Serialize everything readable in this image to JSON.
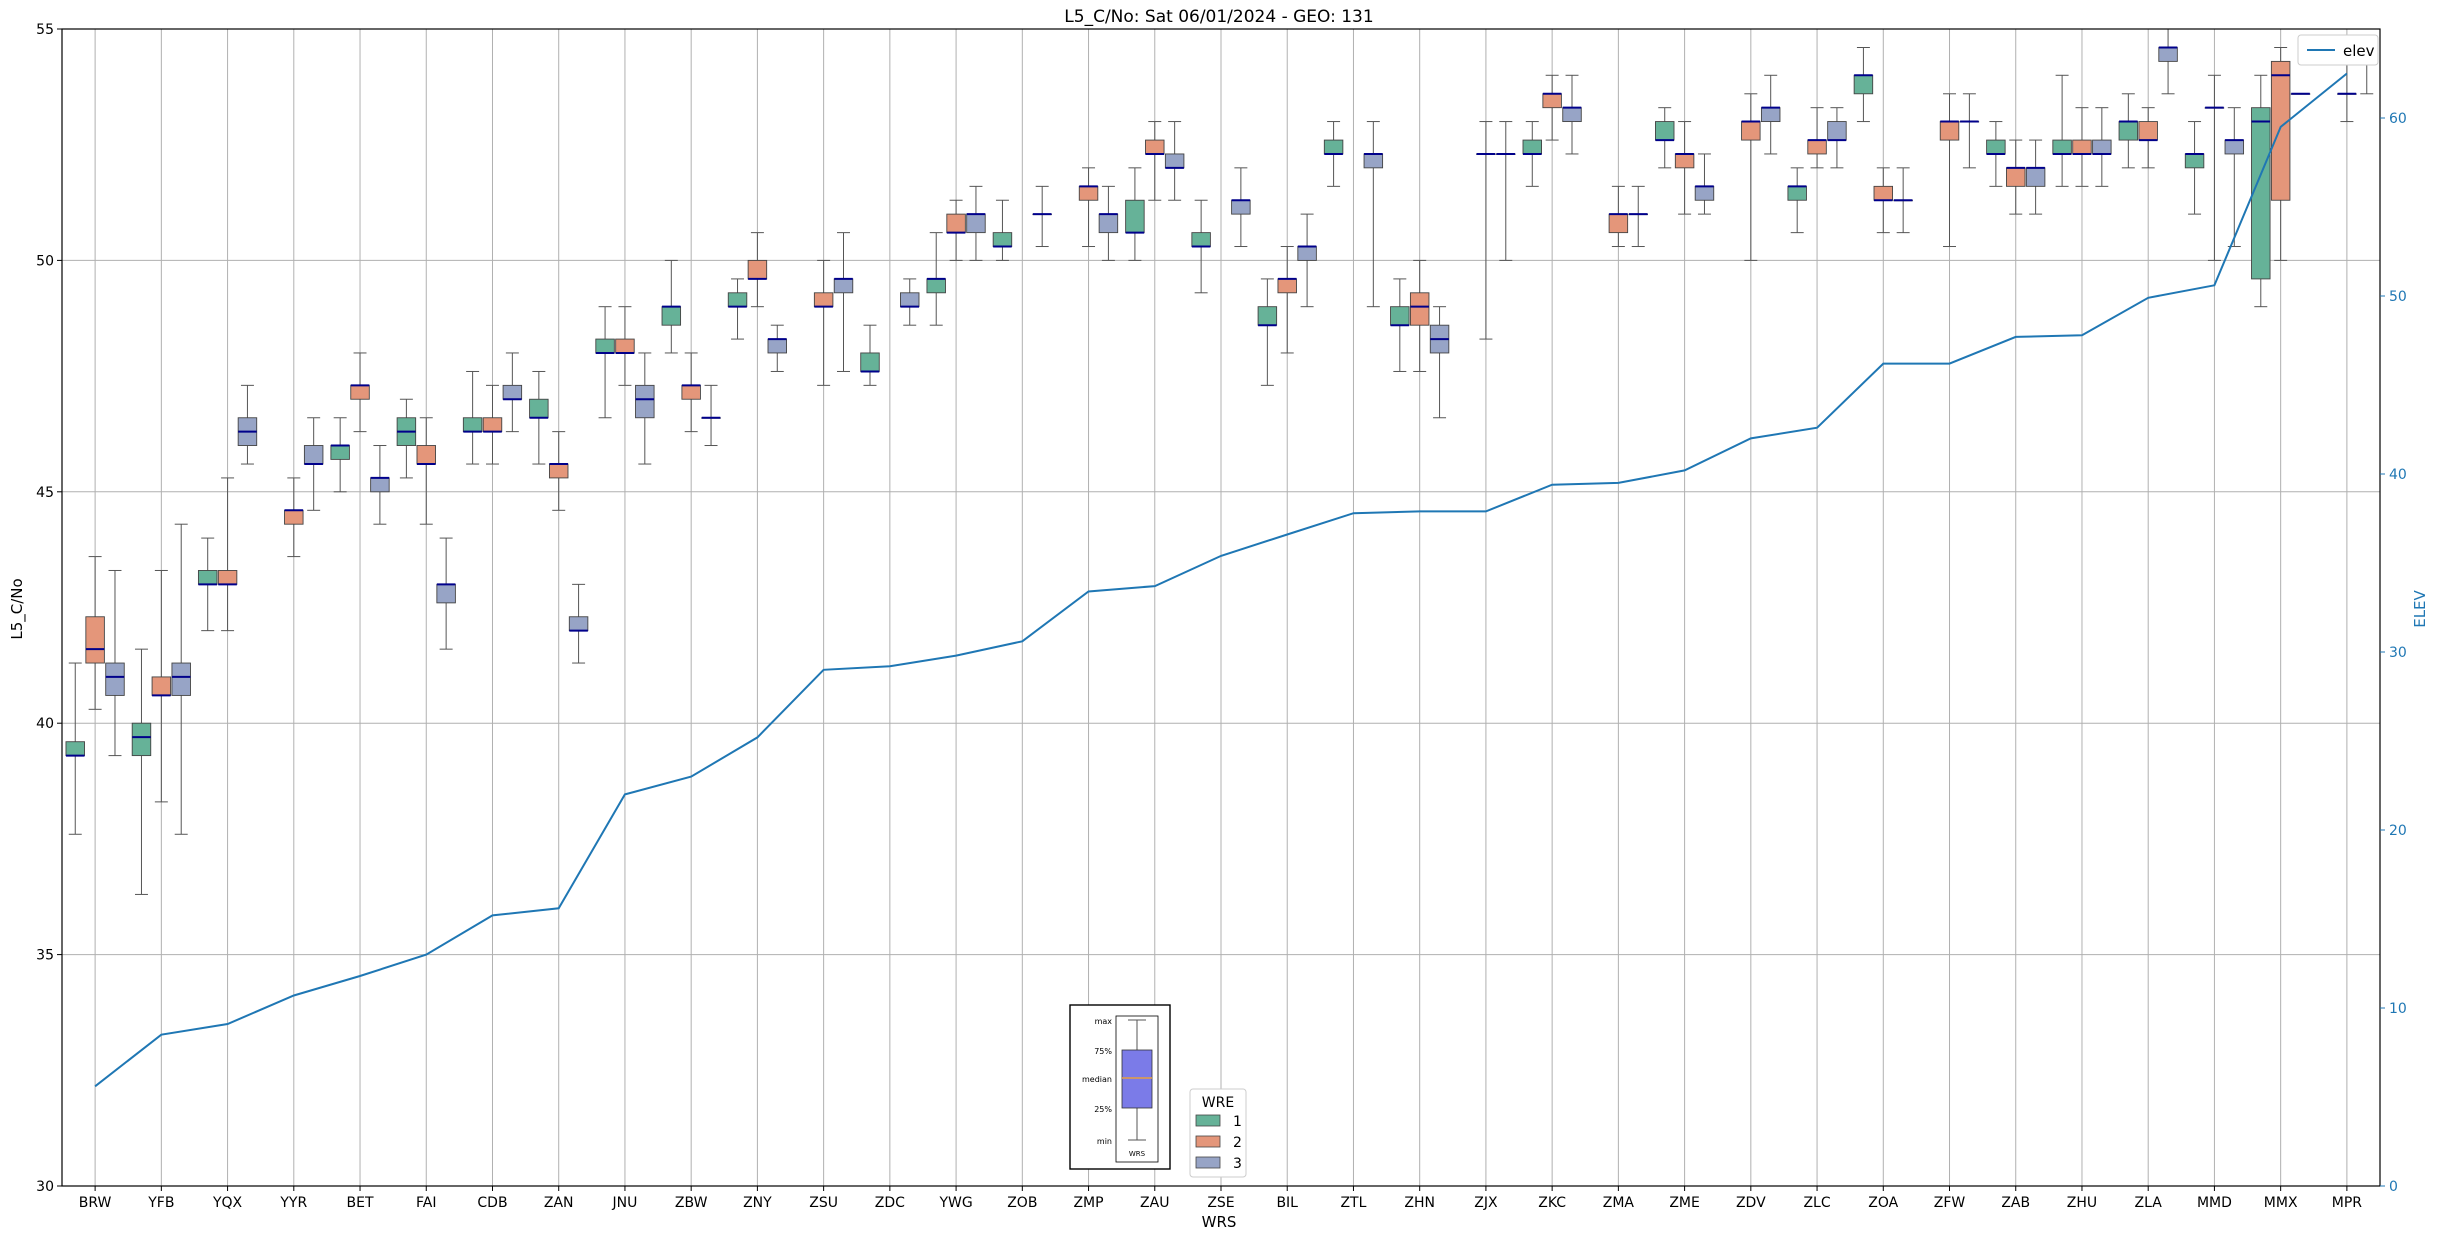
{
  "chart_data": {
    "type": "box",
    "title": "L5_C/No: Sat 06/01/2024 - GEO: 131",
    "xlabel": "WRS",
    "ylabel": "L5_C/No",
    "y2label": "ELEV",
    "ylim": [
      30,
      55
    ],
    "y2lim": [
      0,
      65
    ],
    "yticks": [
      30,
      35,
      40,
      45,
      50,
      55
    ],
    "y2ticks": [
      0,
      10,
      20,
      30,
      40,
      50,
      60
    ],
    "grid": true,
    "categories": [
      "BRW",
      "YFB",
      "YQX",
      "YYR",
      "BET",
      "FAI",
      "CDB",
      "ZAN",
      "JNU",
      "ZBW",
      "ZNY",
      "ZSU",
      "ZDC",
      "YWG",
      "ZOB",
      "ZMP",
      "ZAU",
      "ZSE",
      "BIL",
      "ZTL",
      "ZHN",
      "ZJX",
      "ZKC",
      "ZMA",
      "ZME",
      "ZDV",
      "ZLC",
      "ZOA",
      "ZFW",
      "ZAB",
      "ZHU",
      "ZLA",
      "MMD",
      "MMX",
      "MPR"
    ],
    "series": [
      {
        "name": "1",
        "color": "#66b298",
        "boxes": [
          [
            37.6,
            39.3,
            39.3,
            39.6,
            41.3
          ],
          [
            36.3,
            39.3,
            39.7,
            40.0,
            41.6
          ],
          [
            42.0,
            43.0,
            43.0,
            43.3,
            44.0
          ],
          null,
          [
            45.0,
            45.7,
            46.0,
            46.0,
            46.6
          ],
          [
            45.3,
            46.0,
            46.3,
            46.6,
            47.0
          ],
          [
            45.6,
            46.3,
            46.3,
            46.6,
            47.6
          ],
          [
            45.6,
            46.6,
            46.6,
            47.0,
            47.6
          ],
          [
            46.6,
            48.0,
            48.0,
            48.3,
            49.0
          ],
          [
            48.0,
            48.6,
            49.0,
            49.0,
            50.0
          ],
          [
            48.3,
            49.0,
            49.0,
            49.3,
            49.6
          ],
          null,
          [
            47.3,
            47.6,
            47.6,
            48.0,
            48.6
          ],
          [
            48.6,
            49.3,
            49.6,
            49.6,
            50.6
          ],
          [
            50.0,
            50.3,
            50.3,
            50.6,
            51.3
          ],
          null,
          [
            50.0,
            50.6,
            50.6,
            51.3,
            52.0
          ],
          [
            49.3,
            50.3,
            50.3,
            50.6,
            51.3
          ],
          [
            47.3,
            48.6,
            48.6,
            49.0,
            49.6
          ],
          [
            51.6,
            52.3,
            52.3,
            52.6,
            53.0
          ],
          [
            47.6,
            48.6,
            48.6,
            49.0,
            49.6
          ],
          null,
          [
            51.6,
            52.3,
            52.3,
            52.6,
            53.0
          ],
          null,
          [
            52.0,
            52.6,
            52.6,
            53.0,
            53.3
          ],
          null,
          [
            50.6,
            51.3,
            51.6,
            51.6,
            52.0
          ],
          [
            53.0,
            53.6,
            54.0,
            54.0,
            54.6
          ],
          null,
          [
            51.6,
            52.3,
            52.3,
            52.6,
            53.0
          ],
          [
            51.6,
            52.3,
            52.3,
            52.6,
            54.0
          ],
          [
            52.0,
            52.6,
            53.0,
            53.0,
            53.6
          ],
          [
            51.0,
            52.0,
            52.3,
            52.3,
            53.0
          ],
          [
            49.0,
            49.6,
            53.0,
            53.3,
            54.0
          ],
          null
        ]
      },
      {
        "name": "2",
        "color": "#e4967a",
        "boxes": [
          [
            40.3,
            41.3,
            41.6,
            42.3,
            43.6
          ],
          [
            38.3,
            40.6,
            40.6,
            41.0,
            43.3
          ],
          [
            42.0,
            43.0,
            43.0,
            43.3,
            45.3
          ],
          [
            43.6,
            44.3,
            44.6,
            44.6,
            45.3
          ],
          [
            46.3,
            47.0,
            47.3,
            47.3,
            48.0
          ],
          [
            44.3,
            45.6,
            45.6,
            46.0,
            46.6
          ],
          [
            45.6,
            46.3,
            46.3,
            46.6,
            47.3
          ],
          [
            44.6,
            45.3,
            45.6,
            45.6,
            46.3
          ],
          [
            47.3,
            48.0,
            48.0,
            48.3,
            49.0
          ],
          [
            46.3,
            47.0,
            47.3,
            47.3,
            48.0
          ],
          [
            49.0,
            49.6,
            49.6,
            50.0,
            50.6
          ],
          [
            47.3,
            49.0,
            49.0,
            49.3,
            50.0
          ],
          null,
          [
            50.0,
            50.6,
            50.6,
            51.0,
            51.3
          ],
          null,
          [
            50.3,
            51.3,
            51.6,
            51.6,
            52.0
          ],
          [
            51.3,
            52.3,
            52.3,
            52.6,
            53.0
          ],
          null,
          [
            48.0,
            49.3,
            49.6,
            49.6,
            50.3
          ],
          null,
          [
            47.6,
            48.6,
            49.0,
            49.3,
            50.0
          ],
          [
            48.3,
            52.3,
            52.3,
            52.3,
            53.0
          ],
          [
            52.6,
            53.3,
            53.6,
            53.6,
            54.0
          ],
          [
            50.3,
            50.6,
            51.0,
            51.0,
            51.6
          ],
          [
            51.0,
            52.0,
            52.3,
            52.3,
            53.0
          ],
          [
            50.0,
            52.6,
            53.0,
            53.0,
            53.6
          ],
          [
            52.0,
            52.3,
            52.6,
            52.6,
            53.3
          ],
          [
            50.6,
            51.3,
            51.3,
            51.6,
            52.0
          ],
          [
            50.3,
            52.6,
            53.0,
            53.0,
            53.6
          ],
          [
            51.0,
            51.6,
            52.0,
            52.0,
            52.6
          ],
          [
            51.6,
            52.3,
            52.3,
            52.6,
            53.3
          ],
          [
            52.0,
            52.6,
            52.6,
            53.0,
            53.3
          ],
          [
            50.0,
            53.3,
            53.3,
            53.3,
            54.0
          ],
          [
            50.0,
            51.3,
            54.0,
            54.3,
            54.6
          ],
          [
            53.0,
            53.6,
            53.6,
            53.6,
            54.3
          ]
        ]
      },
      {
        "name": "3",
        "color": "#97a4c6",
        "boxes": [
          [
            39.3,
            40.6,
            41.0,
            41.3,
            43.3
          ],
          [
            37.6,
            40.6,
            41.0,
            41.3,
            44.3
          ],
          [
            45.6,
            46.0,
            46.3,
            46.6,
            47.3
          ],
          [
            44.6,
            45.6,
            45.6,
            46.0,
            46.6
          ],
          [
            44.3,
            45.0,
            45.3,
            45.3,
            46.0
          ],
          [
            41.6,
            42.6,
            43.0,
            43.0,
            44.0
          ],
          [
            46.3,
            47.0,
            47.0,
            47.3,
            48.0
          ],
          [
            41.3,
            42.0,
            42.0,
            42.3,
            43.0
          ],
          [
            45.6,
            46.6,
            47.0,
            47.3,
            48.0
          ],
          [
            46.0,
            46.6,
            46.6,
            46.6,
            47.3
          ],
          [
            47.6,
            48.0,
            48.3,
            48.3,
            48.6
          ],
          [
            47.6,
            49.3,
            49.6,
            49.6,
            50.6
          ],
          [
            48.6,
            49.0,
            49.0,
            49.3,
            49.6
          ],
          [
            50.0,
            50.6,
            51.0,
            51.0,
            51.6
          ],
          [
            50.3,
            51.0,
            51.0,
            51.0,
            51.6
          ],
          [
            50.0,
            50.6,
            51.0,
            51.0,
            51.6
          ],
          [
            51.3,
            52.0,
            52.0,
            52.3,
            53.0
          ],
          [
            50.3,
            51.0,
            51.3,
            51.3,
            52.0
          ],
          [
            49.0,
            50.0,
            50.3,
            50.3,
            51.0
          ],
          [
            49.0,
            52.0,
            52.3,
            52.3,
            53.0
          ],
          [
            46.6,
            48.0,
            48.3,
            48.6,
            49.0
          ],
          [
            50.0,
            52.3,
            52.3,
            52.3,
            53.0
          ],
          [
            52.3,
            53.0,
            53.3,
            53.3,
            54.0
          ],
          [
            50.3,
            51.0,
            51.0,
            51.0,
            51.6
          ],
          [
            51.0,
            51.3,
            51.6,
            51.6,
            52.3
          ],
          [
            52.3,
            53.0,
            53.3,
            53.3,
            54.0
          ],
          [
            52.0,
            52.6,
            52.6,
            53.0,
            53.3
          ],
          [
            50.6,
            51.3,
            51.3,
            51.3,
            52.0
          ],
          [
            52.0,
            53.0,
            53.0,
            53.0,
            53.6
          ],
          [
            51.0,
            51.6,
            52.0,
            52.0,
            52.6
          ],
          [
            51.6,
            52.3,
            52.3,
            52.6,
            53.3
          ],
          [
            53.6,
            54.3,
            54.6,
            54.6,
            55.0
          ],
          [
            50.3,
            52.3,
            52.6,
            52.6,
            53.3
          ],
          [
            53.6,
            53.6,
            53.6,
            53.6,
            53.6
          ],
          [
            53.6,
            54.3,
            54.3,
            54.3,
            54.3
          ]
        ]
      }
    ],
    "elev_line": {
      "name": "elev",
      "color": "#1f77b4",
      "values": [
        5.6,
        8.5,
        9.1,
        10.7,
        11.8,
        13.0,
        15.2,
        15.6,
        22.0,
        23.0,
        25.2,
        29.0,
        29.2,
        29.8,
        30.6,
        33.4,
        33.7,
        35.4,
        36.6,
        37.8,
        37.9,
        37.9,
        39.4,
        39.5,
        40.2,
        42.0,
        42.6,
        46.2,
        46.2,
        47.7,
        47.8,
        49.9,
        50.6,
        59.5,
        62.5
      ]
    },
    "wre_legend": {
      "title": "WRE",
      "entries": [
        "1",
        "2",
        "3"
      ]
    },
    "elev_legend": {
      "label": "elev"
    },
    "inset": {
      "labels": [
        "max",
        "75%",
        "median",
        "25%",
        "min"
      ],
      "xlabel": "WRS"
    }
  }
}
